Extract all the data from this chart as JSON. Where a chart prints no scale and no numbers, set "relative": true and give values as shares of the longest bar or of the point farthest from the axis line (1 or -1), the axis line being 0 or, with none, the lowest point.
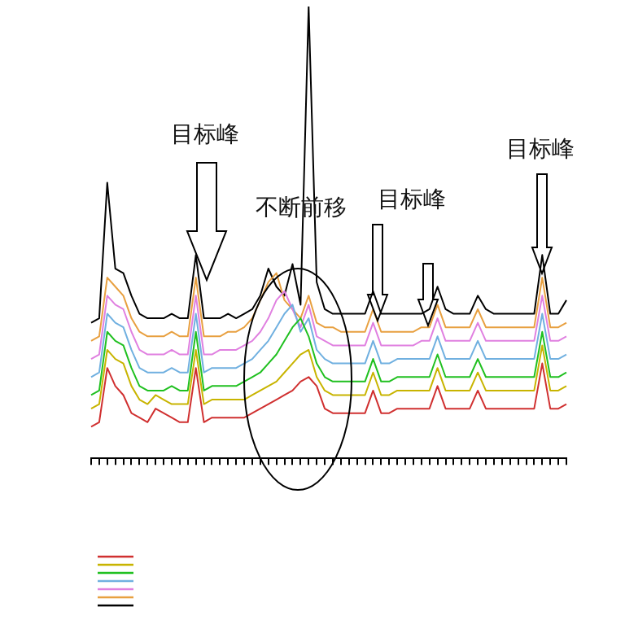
{
  "chart_data": {
    "type": "line",
    "relative": true,
    "grid": false,
    "legend": false,
    "marker": "none",
    "line_style": "solid",
    "annotations": [
      "目标峰",
      "不断前移",
      "目标峰",
      "目标峰"
    ],
    "categories": [
      null,
      null,
      null,
      null,
      null,
      null,
      null,
      null,
      null,
      null,
      null,
      null,
      null,
      null,
      null,
      null,
      null,
      null,
      null,
      null,
      null,
      null,
      null,
      null,
      null,
      null,
      null,
      null,
      null,
      null,
      null,
      null,
      null,
      null,
      null,
      null,
      null,
      null,
      null,
      null,
      null,
      null,
      null,
      null,
      null,
      null,
      null,
      null,
      null,
      null,
      null,
      null,
      null,
      null,
      null,
      null,
      null,
      null,
      null,
      null
    ],
    "series": [
      {
        "color": "#000000",
        "values": [
          0.3,
          0.31,
          0.61,
          0.42,
          0.41,
          0.36,
          0.32,
          0.31,
          0.31,
          0.31,
          0.32,
          0.31,
          0.31,
          0.45,
          0.31,
          0.31,
          0.31,
          0.32,
          0.31,
          0.32,
          0.33,
          0.36,
          0.42,
          0.38,
          0.36,
          0.43,
          0.34,
          1.0,
          0.39,
          0.33,
          0.32,
          0.32,
          0.32,
          0.32,
          0.32,
          0.37,
          0.32,
          0.32,
          0.32,
          0.32,
          0.32,
          0.32,
          0.33,
          0.38,
          0.33,
          0.32,
          0.32,
          0.32,
          0.36,
          0.33,
          0.32,
          0.32,
          0.32,
          0.32,
          0.32,
          0.32,
          0.45,
          0.32,
          0.32,
          0.35
        ]
      },
      {
        "color": "#e8a040",
        "values": [
          0.26,
          0.27,
          0.4,
          0.38,
          0.36,
          0.31,
          0.28,
          0.27,
          0.27,
          0.27,
          0.28,
          0.27,
          0.27,
          0.4,
          0.27,
          0.27,
          0.27,
          0.28,
          0.28,
          0.29,
          0.31,
          0.35,
          0.39,
          0.41,
          0.35,
          0.33,
          0.31,
          0.36,
          0.3,
          0.29,
          0.29,
          0.28,
          0.28,
          0.28,
          0.28,
          0.33,
          0.28,
          0.28,
          0.28,
          0.28,
          0.28,
          0.29,
          0.29,
          0.34,
          0.29,
          0.29,
          0.29,
          0.29,
          0.33,
          0.29,
          0.29,
          0.29,
          0.29,
          0.29,
          0.29,
          0.29,
          0.4,
          0.29,
          0.29,
          0.3
        ]
      },
      {
        "color": "#e080e0",
        "values": [
          0.22,
          0.23,
          0.36,
          0.34,
          0.33,
          0.28,
          0.24,
          0.23,
          0.23,
          0.23,
          0.24,
          0.23,
          0.23,
          0.36,
          0.23,
          0.23,
          0.24,
          0.24,
          0.24,
          0.25,
          0.26,
          0.28,
          0.31,
          0.35,
          0.37,
          0.33,
          0.29,
          0.34,
          0.27,
          0.26,
          0.25,
          0.25,
          0.25,
          0.25,
          0.25,
          0.3,
          0.25,
          0.25,
          0.25,
          0.25,
          0.25,
          0.26,
          0.26,
          0.31,
          0.26,
          0.26,
          0.26,
          0.26,
          0.3,
          0.26,
          0.26,
          0.26,
          0.26,
          0.26,
          0.26,
          0.26,
          0.36,
          0.26,
          0.26,
          0.27
        ]
      },
      {
        "color": "#70b0e0",
        "values": [
          0.18,
          0.19,
          0.32,
          0.3,
          0.29,
          0.24,
          0.2,
          0.19,
          0.19,
          0.19,
          0.2,
          0.19,
          0.19,
          0.32,
          0.19,
          0.2,
          0.2,
          0.2,
          0.2,
          0.21,
          0.22,
          0.24,
          0.26,
          0.29,
          0.32,
          0.34,
          0.28,
          0.31,
          0.24,
          0.22,
          0.21,
          0.21,
          0.21,
          0.21,
          0.21,
          0.26,
          0.21,
          0.21,
          0.22,
          0.22,
          0.22,
          0.22,
          0.22,
          0.27,
          0.22,
          0.22,
          0.22,
          0.22,
          0.26,
          0.22,
          0.22,
          0.22,
          0.22,
          0.22,
          0.22,
          0.22,
          0.32,
          0.22,
          0.22,
          0.23
        ]
      },
      {
        "color": "#20c020",
        "values": [
          0.14,
          0.15,
          0.28,
          0.26,
          0.25,
          0.2,
          0.16,
          0.15,
          0.15,
          0.15,
          0.16,
          0.15,
          0.15,
          0.28,
          0.15,
          0.16,
          0.16,
          0.16,
          0.16,
          0.17,
          0.18,
          0.19,
          0.21,
          0.23,
          0.26,
          0.29,
          0.31,
          0.27,
          0.21,
          0.18,
          0.17,
          0.17,
          0.17,
          0.17,
          0.17,
          0.22,
          0.17,
          0.17,
          0.18,
          0.18,
          0.18,
          0.18,
          0.18,
          0.23,
          0.18,
          0.18,
          0.18,
          0.18,
          0.22,
          0.18,
          0.18,
          0.18,
          0.18,
          0.18,
          0.18,
          0.18,
          0.28,
          0.18,
          0.18,
          0.19
        ]
      },
      {
        "color": "#c8b400",
        "values": [
          0.11,
          0.12,
          0.24,
          0.22,
          0.21,
          0.16,
          0.13,
          0.12,
          0.14,
          0.13,
          0.12,
          0.12,
          0.12,
          0.24,
          0.12,
          0.13,
          0.13,
          0.13,
          0.13,
          0.13,
          0.14,
          0.15,
          0.16,
          0.17,
          0.19,
          0.21,
          0.23,
          0.24,
          0.18,
          0.15,
          0.14,
          0.14,
          0.14,
          0.14,
          0.14,
          0.19,
          0.14,
          0.14,
          0.15,
          0.15,
          0.15,
          0.15,
          0.15,
          0.2,
          0.15,
          0.15,
          0.15,
          0.15,
          0.19,
          0.15,
          0.15,
          0.15,
          0.15,
          0.15,
          0.15,
          0.15,
          0.25,
          0.15,
          0.15,
          0.16
        ]
      },
      {
        "color": "#d03030",
        "values": [
          0.07,
          0.08,
          0.2,
          0.16,
          0.14,
          0.1,
          0.09,
          0.08,
          0.11,
          0.1,
          0.09,
          0.08,
          0.08,
          0.2,
          0.08,
          0.09,
          0.09,
          0.09,
          0.09,
          0.09,
          0.1,
          0.11,
          0.12,
          0.13,
          0.14,
          0.15,
          0.17,
          0.18,
          0.16,
          0.11,
          0.1,
          0.1,
          0.1,
          0.1,
          0.1,
          0.15,
          0.1,
          0.1,
          0.11,
          0.11,
          0.11,
          0.11,
          0.11,
          0.16,
          0.11,
          0.11,
          0.11,
          0.11,
          0.15,
          0.11,
          0.11,
          0.11,
          0.11,
          0.11,
          0.11,
          0.11,
          0.21,
          0.11,
          0.11,
          0.12
        ]
      }
    ]
  }
}
